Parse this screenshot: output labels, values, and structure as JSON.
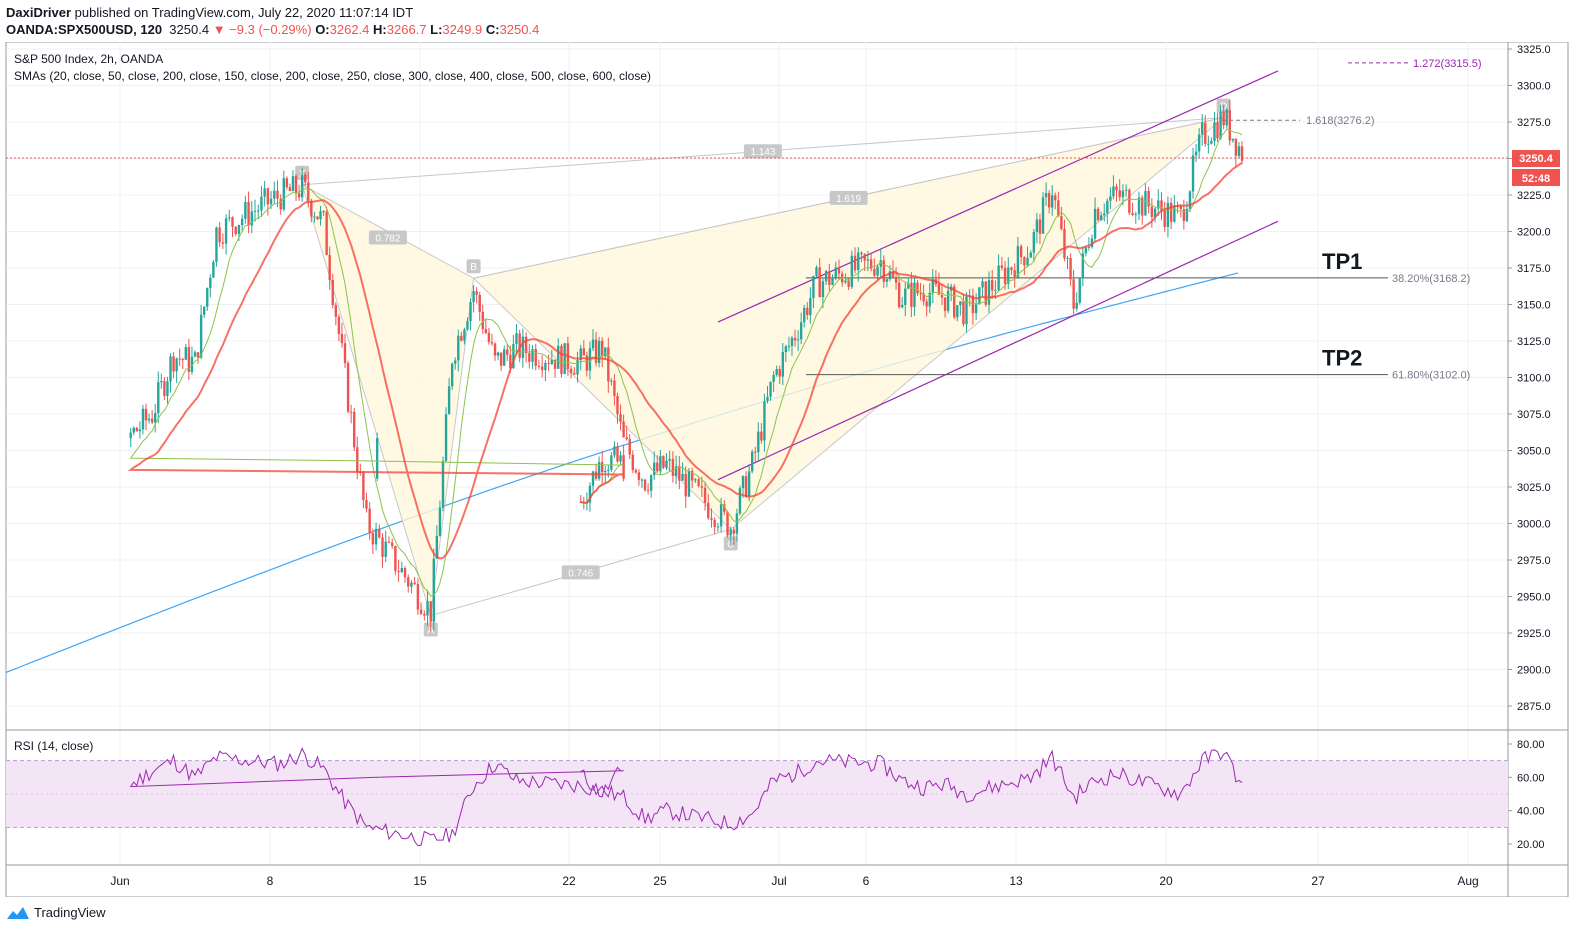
{
  "header": {
    "author": "DaxiDriver",
    "published_text": "published on TradingView.com, July 22, 2020 11:07:14 IDT",
    "symbol": "OANDA:SPX500USD, 120",
    "last": "3250.4",
    "change": "▼ −9.3 (−0.29%)",
    "o_label": "O:",
    "o": "3262.4",
    "h_label": "H:",
    "h": "3266.7",
    "l_label": "L:",
    "l": "3249.9",
    "c_label": "C:",
    "c": "3250.4"
  },
  "legend": {
    "title": "S&P 500 Index, 2h, OANDA",
    "smas": "SMAs (20, close, 50, close, 200, close, 150, close, 200, close, 250, close, 300, close, 400, close, 500, close, 600, close)",
    "rsi": "RSI (14, close)"
  },
  "footer": {
    "brand": "TradingView"
  },
  "colors": {
    "up": "#26a69a",
    "down": "#ef5350",
    "sma20": "#8bc34a",
    "sma50": "#f44336",
    "sma200": "#42a5f5",
    "channel": "#9c27b0",
    "pattern_fill": "#fff8dc",
    "pattern_line": "#c8c8c8",
    "rsi_line": "#9c27b0",
    "rsi_band": "#f3e5f5"
  },
  "chart_data": {
    "type": "line",
    "title": "S&P 500 Index, 2h, OANDA",
    "x_ticks": [
      "Jun",
      "8",
      "15",
      "22",
      "25",
      "Jul",
      "6",
      "13",
      "20",
      "27",
      "Aug"
    ],
    "y_ticks": [
      2875,
      2900,
      2925,
      2950,
      2975,
      3000,
      3025,
      3050,
      3075,
      3100,
      3125,
      3150,
      3175,
      3200,
      3225,
      3250,
      3275,
      3300,
      3325
    ],
    "ylim": [
      2855,
      3330
    ],
    "last_price": "3250.4",
    "countdown": "52:48",
    "price_path": [
      {
        "d": "May 27",
        "v": 3015
      },
      {
        "d": "May 28",
        "v": 3045
      },
      {
        "d": "May 29",
        "v": 3040
      },
      {
        "d": "Jun 1",
        "v": 3060
      },
      {
        "d": "Jun 2",
        "v": 3075
      },
      {
        "d": "Jun 3",
        "v": 3115
      },
      {
        "d": "Jun 4",
        "v": 3110
      },
      {
        "d": "Jun 5",
        "v": 3200
      },
      {
        "d": "Jun 8",
        "v": 3225
      },
      {
        "d": "Jun 9",
        "v": 3230
      },
      {
        "d": "Jun 10",
        "v": 3205
      },
      {
        "d": "Jun 11",
        "v": 3100
      },
      {
        "d": "Jun 12",
        "v": 3000
      },
      {
        "d": "Jun 15",
        "v": 2940
      },
      {
        "d": "Jun 16",
        "v": 3115
      },
      {
        "d": "Jun 17",
        "v": 3160
      },
      {
        "d": "Jun 18",
        "v": 3110
      },
      {
        "d": "Jun 19",
        "v": 3120
      },
      {
        "d": "Jun 22",
        "v": 3110
      },
      {
        "d": "Jun 23",
        "v": 3120
      },
      {
        "d": "Jun 24",
        "v": 3055
      },
      {
        "d": "Jun 25",
        "v": 3030
      },
      {
        "d": "Jun 26",
        "v": 3040
      },
      {
        "d": "Jun 29",
        "v": 2998
      },
      {
        "d": "Jun 30",
        "v": 3040
      },
      {
        "d": "Jul 1",
        "v": 3100
      },
      {
        "d": "Jul 2",
        "v": 3130
      },
      {
        "d": "Jul 3",
        "v": 3165
      },
      {
        "d": "Jul 6",
        "v": 3180
      },
      {
        "d": "Jul 7",
        "v": 3155
      },
      {
        "d": "Jul 8",
        "v": 3160
      },
      {
        "d": "Jul 9",
        "v": 3155
      },
      {
        "d": "Jul 10",
        "v": 3145
      },
      {
        "d": "Jul 13",
        "v": 3190
      },
      {
        "d": "Jul 14",
        "v": 3230
      },
      {
        "d": "Jul 15",
        "v": 3150
      },
      {
        "d": "Jul 16",
        "v": 3215
      },
      {
        "d": "Jul 17",
        "v": 3225
      },
      {
        "d": "Jul 20",
        "v": 3210
      },
      {
        "d": "Jul 21",
        "v": 3265
      },
      {
        "d": "Jul 22",
        "v": 3278
      },
      {
        "d": "Jul 23",
        "v": 3250
      }
    ],
    "pattern": {
      "points": [
        {
          "label": "X",
          "d": "Jun 9",
          "v": 3232
        },
        {
          "label": "A",
          "d": "Jun 15",
          "v": 2937
        },
        {
          "label": "B",
          "d": "Jun 17",
          "v": 3168
        },
        {
          "label": "C",
          "d": "Jun 29",
          "v": 2996
        },
        {
          "label": "D",
          "d": "Jul 22",
          "v": 3278
        }
      ],
      "ratios": [
        "0.782",
        "0.746",
        "1.619",
        "1.143"
      ]
    },
    "levels": [
      {
        "label": "38.20%(3168.2)",
        "v": 3168.2,
        "tag": "TP1"
      },
      {
        "label": "61.80%(3102.0)",
        "v": 3102.0,
        "tag": "TP2"
      },
      {
        "label": "1.618(3276.2)",
        "v": 3276.2
      },
      {
        "label": "1.272(3315.5)",
        "v": 3315.5
      }
    ],
    "rsi": {
      "y_ticks": [
        20,
        40,
        60,
        80
      ],
      "ylim": [
        7,
        86
      ],
      "band": [
        30,
        70
      ],
      "values": [
        62,
        50,
        66,
        55,
        64,
        70,
        60,
        72,
        68,
        74,
        65,
        45,
        30,
        22,
        26,
        55,
        68,
        58,
        55,
        52,
        48,
        35,
        40,
        32,
        38,
        58,
        62,
        70,
        68,
        58,
        54,
        56,
        50,
        60,
        72,
        48,
        58,
        62,
        50,
        70,
        76,
        50
      ]
    }
  }
}
